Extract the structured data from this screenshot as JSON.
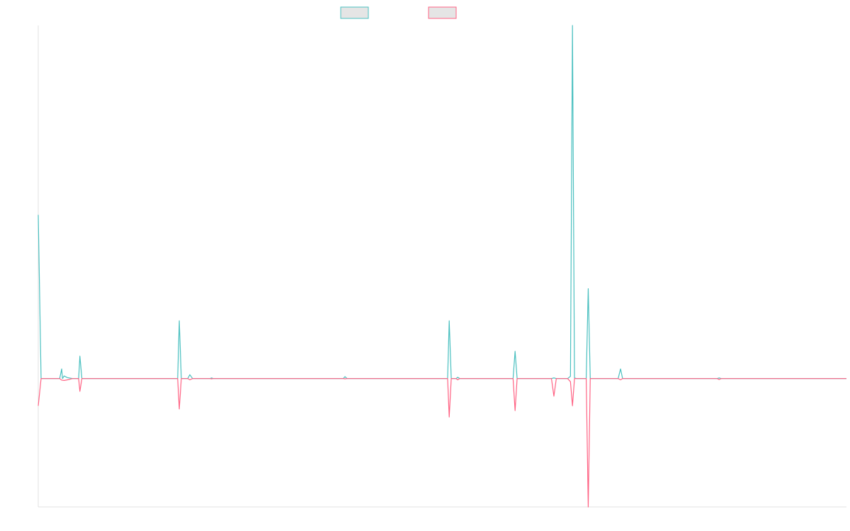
{
  "colors": {
    "series_1": "#4bc0c0",
    "series_2": "#ff6384",
    "legend_fill": "#e5e5e5",
    "axis": "#e0e0e0"
  },
  "chart_data": {
    "type": "line",
    "grid": false,
    "legend_position": "top-center",
    "xlim": [
      0,
      200
    ],
    "ylim": [
      -0.4,
      1.1
    ],
    "series": [
      {
        "color": "#4bc0c0",
        "points": [
          [
            0,
            0.51
          ],
          [
            0.7,
            0
          ],
          [
            6,
            0
          ],
          [
            5.3,
            0
          ],
          [
            5.8,
            0.03
          ],
          [
            6.4,
            0.008
          ],
          [
            7.2,
            0.003
          ],
          [
            8.5,
            0
          ],
          [
            10,
            0
          ],
          [
            10.3,
            0.07
          ],
          [
            10.8,
            0
          ],
          [
            11.2,
            0
          ],
          [
            34.5,
            0
          ],
          [
            34.9,
            0.18
          ],
          [
            35.4,
            0
          ],
          [
            37,
            0
          ],
          [
            37.5,
            0.012
          ],
          [
            38.2,
            0
          ],
          [
            42.5,
            0
          ],
          [
            42.9,
            0.002
          ],
          [
            43.3,
            0
          ],
          [
            75.5,
            0
          ],
          [
            75.9,
            0.006
          ],
          [
            76.4,
            0
          ],
          [
            101.3,
            0
          ],
          [
            101.7,
            0.18
          ],
          [
            102.2,
            0
          ],
          [
            103.4,
            0
          ],
          [
            103.8,
            0.004
          ],
          [
            104.3,
            0
          ],
          [
            117.5,
            0
          ],
          [
            118,
            0.085
          ],
          [
            118.5,
            0
          ],
          [
            127,
            0
          ],
          [
            127.6,
            0.002
          ],
          [
            128.2,
            0
          ],
          [
            131,
            0
          ],
          [
            131.7,
            0.007
          ],
          [
            132.2,
            1.1
          ],
          [
            132.7,
            0.002
          ],
          [
            133.2,
            0
          ],
          [
            135.6,
            0
          ],
          [
            136.1,
            0.28
          ],
          [
            136.6,
            0
          ],
          [
            143.5,
            0
          ],
          [
            144.1,
            0.03
          ],
          [
            144.6,
            0
          ],
          [
            168,
            0
          ],
          [
            168.5,
            0.002
          ],
          [
            169,
            0
          ],
          [
            200,
            0
          ]
        ]
      },
      {
        "color": "#ff6384",
        "points": [
          [
            0,
            -0.085
          ],
          [
            0.7,
            0
          ],
          [
            5.3,
            0
          ],
          [
            5.8,
            -0.005
          ],
          [
            6.4,
            -0.006
          ],
          [
            7.2,
            -0.004
          ],
          [
            8.5,
            0
          ],
          [
            10,
            0
          ],
          [
            10.3,
            -0.04
          ],
          [
            10.8,
            0
          ],
          [
            11.2,
            0
          ],
          [
            34.5,
            0
          ],
          [
            34.9,
            -0.095
          ],
          [
            35.4,
            0
          ],
          [
            37,
            0
          ],
          [
            37.5,
            -0.004
          ],
          [
            38.2,
            0
          ],
          [
            42.5,
            0
          ],
          [
            42.9,
            -0.001
          ],
          [
            43.3,
            0
          ],
          [
            75.5,
            0
          ],
          [
            75.9,
            -0.001
          ],
          [
            76.4,
            0
          ],
          [
            101.3,
            0
          ],
          [
            101.7,
            -0.12
          ],
          [
            102.2,
            0
          ],
          [
            103.4,
            0
          ],
          [
            103.8,
            -0.004
          ],
          [
            104.3,
            0
          ],
          [
            117.5,
            0
          ],
          [
            118,
            -0.1
          ],
          [
            118.5,
            0
          ],
          [
            127,
            0
          ],
          [
            127.6,
            -0.055
          ],
          [
            128.2,
            0
          ],
          [
            131,
            0
          ],
          [
            131.7,
            -0.01
          ],
          [
            132.2,
            -0.085
          ],
          [
            132.7,
            0
          ],
          [
            133.2,
            0
          ],
          [
            135.6,
            0
          ],
          [
            136.1,
            -0.4
          ],
          [
            136.6,
            0
          ],
          [
            143.5,
            0
          ],
          [
            144.1,
            -0.004
          ],
          [
            144.6,
            0
          ],
          [
            168,
            0
          ],
          [
            168.5,
            -0.003
          ],
          [
            169,
            0
          ],
          [
            200,
            0
          ]
        ]
      }
    ]
  }
}
